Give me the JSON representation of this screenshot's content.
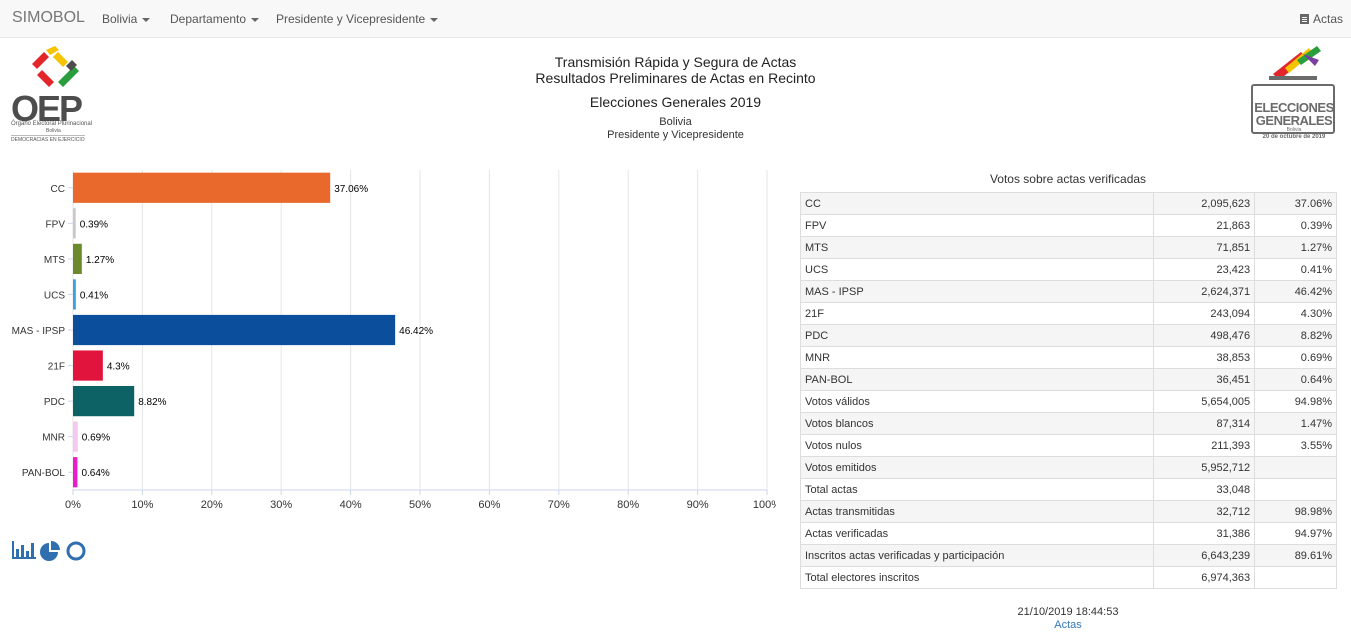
{
  "navbar": {
    "brand": "SIMOBOL",
    "items": [
      {
        "label": "Bolivia"
      },
      {
        "label": "Departamento"
      },
      {
        "label": "Presidente y Vicepresidente"
      }
    ],
    "right_label": "Actas"
  },
  "header": {
    "line1": "Transmisión Rápida y Segura de Actas",
    "line2": "Resultados Preliminares de Actas en Recinto",
    "line3": "Elecciones Generales 2019",
    "sub1": "Bolivia",
    "sub2": "Presidente y Vicepresidente"
  },
  "logos": {
    "oep": {
      "text": "OEP",
      "line1": "Órgano Electoral Plurinacional",
      "line2": "Bolivia",
      "line3": "DEMOCRACIAS EN EJERCICIO"
    },
    "elecciones": {
      "text1": "ELECCIONES",
      "text2": "GENERALES",
      "text3": "Bolivia",
      "text4": "20 de octubre de 2019"
    }
  },
  "chart_data": {
    "type": "bar",
    "orientation": "horizontal",
    "categories": [
      "CC",
      "FPV",
      "MTS",
      "UCS",
      "MAS - IPSP",
      "21F",
      "PDC",
      "MNR",
      "PAN-BOL"
    ],
    "values": [
      37.06,
      0.39,
      1.27,
      0.41,
      46.42,
      4.3,
      8.82,
      0.69,
      0.64
    ],
    "data_labels": [
      "37.06%",
      "0.39%",
      "1.27%",
      "0.41%",
      "46.42%",
      "4.3%",
      "8.82%",
      "0.69%",
      "0.64%"
    ],
    "colors": [
      "#e9692c",
      "#c8c8c8",
      "#6a8a2b",
      "#3aa3dc",
      "#0a4e9c",
      "#e0143c",
      "#0c6264",
      "#f5c8f0",
      "#e81ec8"
    ],
    "xlim": [
      0,
      100
    ],
    "xticks": [
      "0%",
      "10%",
      "20%",
      "30%",
      "40%",
      "50%",
      "60%",
      "70%",
      "80%",
      "90%",
      "100%"
    ],
    "grid": true,
    "title": "",
    "xlabel": "",
    "ylabel": ""
  },
  "view_icons": [
    "bar-chart-icon",
    "pie-chart-icon",
    "donut-chart-icon"
  ],
  "table": {
    "title": "Votos sobre actas verificadas",
    "rows": [
      [
        "CC",
        "2,095,623",
        "37.06%"
      ],
      [
        "FPV",
        "21,863",
        "0.39%"
      ],
      [
        "MTS",
        "71,851",
        "1.27%"
      ],
      [
        "UCS",
        "23,423",
        "0.41%"
      ],
      [
        "MAS - IPSP",
        "2,624,371",
        "46.42%"
      ],
      [
        "21F",
        "243,094",
        "4.30%"
      ],
      [
        "PDC",
        "498,476",
        "8.82%"
      ],
      [
        "MNR",
        "38,853",
        "0.69%"
      ],
      [
        "PAN-BOL",
        "36,451",
        "0.64%"
      ],
      [
        "Votos válidos",
        "5,654,005",
        "94.98%"
      ],
      [
        "Votos blancos",
        "87,314",
        "1.47%"
      ],
      [
        "Votos nulos",
        "211,393",
        "3.55%"
      ],
      [
        "Votos emitidos",
        "5,952,712",
        ""
      ],
      [
        "Total actas",
        "33,048",
        ""
      ],
      [
        "Actas transmitidas",
        "32,712",
        "98.98%"
      ],
      [
        "Actas verificadas",
        "31,386",
        "94.97%"
      ],
      [
        "Inscritos actas verificadas y participación",
        "6,643,239",
        "89.61%"
      ],
      [
        "Total electores inscritos",
        "6,974,363",
        ""
      ]
    ]
  },
  "footer": {
    "timestamp": "21/10/2019 18:44:53",
    "link": "Actas"
  }
}
